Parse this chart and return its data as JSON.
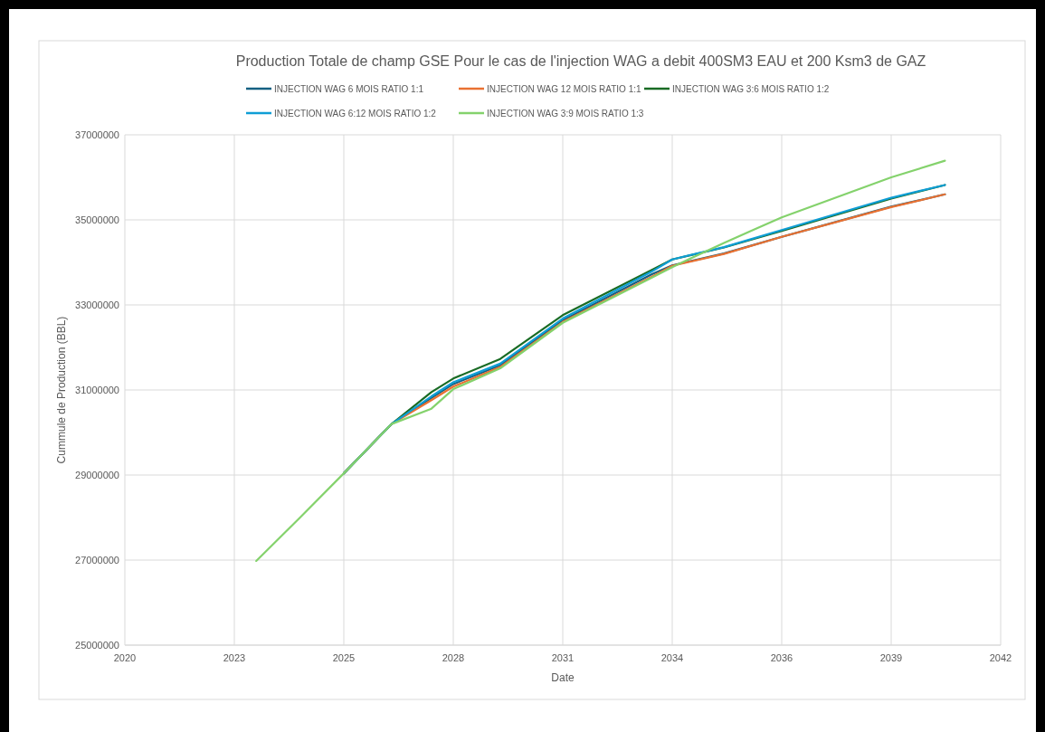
{
  "chart_data": {
    "type": "line",
    "title": "Production Totale de champ GSE Pour le cas de l'injection WAG a debit 400SM3 EAU et 200  Ksm3 de GAZ",
    "xlabel": "Date",
    "ylabel": "Cummule de Production (BBL)",
    "x": [
      2023.3,
      2024.4,
      2025.5,
      2026.7,
      2027.7,
      2028.25,
      2029.43,
      2031.0,
      2033.23,
      2033.75,
      2035.05,
      2036.5,
      2039.25,
      2040.6
    ],
    "series": [
      {
        "name": "INJECTION WAG 6 MOIS RATIO 1:1",
        "color": "#156082",
        "values": [
          null,
          null,
          29040000,
          30200000,
          30810000,
          31140000,
          31580000,
          32640000,
          33720000,
          33930000,
          34210000,
          34600000,
          35310000,
          35600000
        ]
      },
      {
        "name": "INJECTION WAG 12 MOIS RATIO 1:1",
        "color": "#e97132",
        "values": [
          null,
          null,
          29040000,
          30200000,
          30760000,
          31080000,
          31540000,
          32600000,
          33660000,
          33920000,
          34200000,
          34600000,
          35300000,
          35600000
        ]
      },
      {
        "name": "INJECTION WAG 3:6 MOIS RATIO 1:2",
        "color": "#196b24",
        "values": [
          null,
          null,
          29040000,
          30200000,
          30950000,
          31270000,
          31730000,
          32760000,
          33820000,
          34070000,
          34350000,
          34740000,
          35500000,
          35820000
        ]
      },
      {
        "name": "INJECTION WAG 6:12 MOIS RATIO 1:2",
        "color": "#0f9ed5",
        "values": [
          null,
          null,
          29040000,
          30200000,
          30850000,
          31180000,
          31620000,
          32680000,
          33780000,
          34070000,
          34360000,
          34760000,
          35520000,
          35820000
        ]
      },
      {
        "name": "INJECTION WAG 3:9 MOIS RATIO 1:3",
        "color": "#84d26c",
        "values": [
          26980000,
          28000000,
          29040000,
          30200000,
          30560000,
          31020000,
          31510000,
          32580000,
          33640000,
          33890000,
          34460000,
          35060000,
          36000000,
          36390000
        ]
      }
    ],
    "xlim": [
      2020,
      2042
    ],
    "xticks": [
      {
        "value": 2020,
        "label": "2020"
      },
      {
        "value": 2022.75,
        "label": "2023"
      },
      {
        "value": 2025.5,
        "label": "2025"
      },
      {
        "value": 2028.25,
        "label": "2028"
      },
      {
        "value": 2031,
        "label": "2031"
      },
      {
        "value": 2033.75,
        "label": "2034"
      },
      {
        "value": 2036.5,
        "label": "2036"
      },
      {
        "value": 2039.25,
        "label": "2039"
      },
      {
        "value": 2042,
        "label": "2042"
      }
    ],
    "ylim": [
      25000000,
      37000000
    ],
    "yticks": [
      25000000,
      27000000,
      29000000,
      31000000,
      33000000,
      35000000,
      37000000
    ],
    "grid": true,
    "legend": "top",
    "marker": "none",
    "line_style": "solid"
  }
}
